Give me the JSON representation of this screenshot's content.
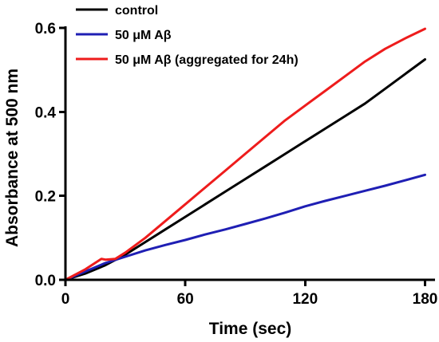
{
  "chart_data": {
    "type": "line",
    "title": "",
    "xlabel": "Time (sec)",
    "ylabel": "Absorbance at 500 nm",
    "xlim": [
      0,
      185
    ],
    "ylim": [
      0,
      0.6
    ],
    "xticks": [
      0,
      60,
      120,
      180
    ],
    "xtick_labels": [
      "0",
      "60",
      "120",
      "180"
    ],
    "yticks": [
      0.0,
      0.2,
      0.4,
      0.6
    ],
    "ytick_labels": [
      "0.0",
      "0.2",
      "0.4",
      "0.6"
    ],
    "grid": false,
    "legend_position": "top-left",
    "series": [
      {
        "name": "control",
        "color": "#000000",
        "x": [
          0,
          10,
          20,
          30,
          40,
          50,
          60,
          70,
          80,
          90,
          100,
          110,
          120,
          130,
          140,
          150,
          160,
          170,
          180
        ],
        "y": [
          0.0,
          0.015,
          0.035,
          0.06,
          0.09,
          0.12,
          0.15,
          0.18,
          0.21,
          0.24,
          0.27,
          0.3,
          0.33,
          0.36,
          0.39,
          0.42,
          0.455,
          0.49,
          0.525
        ]
      },
      {
        "name": "50 μM Aβ",
        "color": "#1f1fb4",
        "x": [
          0,
          10,
          20,
          30,
          40,
          50,
          60,
          70,
          80,
          90,
          100,
          110,
          120,
          130,
          140,
          150,
          160,
          170,
          180
        ],
        "y": [
          0.0,
          0.02,
          0.04,
          0.055,
          0.07,
          0.083,
          0.095,
          0.108,
          0.12,
          0.133,
          0.146,
          0.16,
          0.175,
          0.188,
          0.2,
          0.212,
          0.224,
          0.237,
          0.25
        ]
      },
      {
        "name": "50 μM Aβ (aggregated for 24h)",
        "color": "#ee1c1c",
        "x": [
          0,
          10,
          18,
          20,
          25,
          30,
          40,
          50,
          60,
          70,
          80,
          90,
          100,
          110,
          120,
          130,
          140,
          150,
          160,
          170,
          180
        ],
        "y": [
          0.0,
          0.025,
          0.05,
          0.048,
          0.05,
          0.065,
          0.1,
          0.14,
          0.18,
          0.22,
          0.26,
          0.3,
          0.34,
          0.38,
          0.415,
          0.45,
          0.485,
          0.52,
          0.55,
          0.575,
          0.598
        ]
      }
    ]
  }
}
